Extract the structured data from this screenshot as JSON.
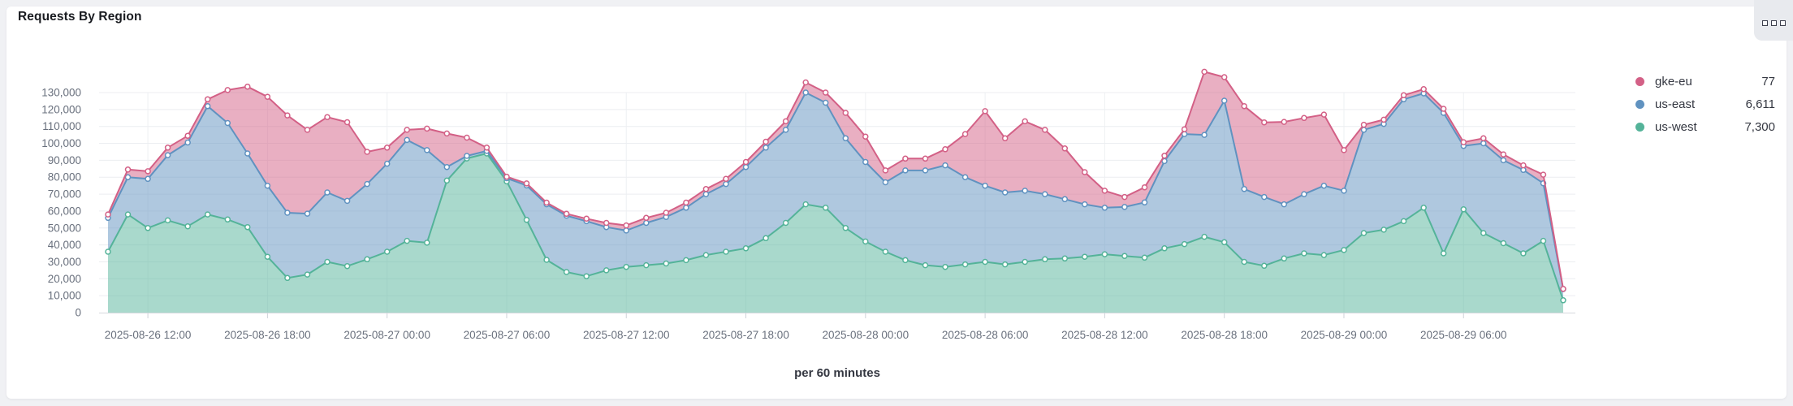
{
  "panel": {
    "title": "Requests By Region",
    "options_icon": "boxes-horizontal"
  },
  "legend": {
    "position": "right",
    "items": [
      {
        "label": "gke-eu",
        "value": "77",
        "color": "#d36086"
      },
      {
        "label": "us-east",
        "value": "6,611",
        "color": "#6092c0"
      },
      {
        "label": "us-west",
        "value": "7,300",
        "color": "#54b399"
      }
    ]
  },
  "chart_data": {
    "type": "area",
    "stacked": true,
    "title": "Requests By Region",
    "xlabel": "per 60 minutes",
    "ylabel": "",
    "ylim": [
      0,
      130000
    ],
    "y_tick_step": 10000,
    "grid": true,
    "legend_position": "right",
    "x_tick_labels": [
      "2025-08-26 12:00",
      "2025-08-26 18:00",
      "2025-08-27 00:00",
      "2025-08-27 06:00",
      "2025-08-27 12:00",
      "2025-08-27 18:00",
      "2025-08-28 00:00",
      "2025-08-28 06:00",
      "2025-08-28 12:00",
      "2025-08-28 18:00",
      "2025-08-29 00:00",
      "2025-08-29 06:00"
    ],
    "x_tick_point_indices": [
      2,
      8,
      14,
      20,
      26,
      32,
      38,
      44,
      50,
      56,
      62,
      68
    ],
    "series": [
      {
        "name": "us-west",
        "color": "#54b399",
        "values": [
          36000,
          58000,
          50000,
          54500,
          51000,
          58000,
          55000,
          50500,
          33000,
          20500,
          22500,
          30000,
          27500,
          31500,
          36000,
          42400,
          41300,
          78000,
          91100,
          94000,
          77500,
          54800,
          31200,
          24000,
          21500,
          25000,
          27000,
          28000,
          29000,
          31000,
          34000,
          36000,
          38000,
          44000,
          53000,
          64000,
          62000,
          50000,
          42000,
          36000,
          31000,
          28000,
          27000,
          28500,
          30000,
          28500,
          30000,
          31500,
          32000,
          33000,
          34500,
          33500,
          32500,
          38000,
          40500,
          44800,
          41600,
          30000,
          27700,
          32000,
          35000,
          34000,
          37000,
          47000,
          49000,
          54000,
          62000,
          35000,
          61000,
          47000,
          41000,
          35000,
          42400,
          7300
        ]
      },
      {
        "name": "us-east",
        "color": "#6092c0",
        "values": [
          20000,
          22000,
          29000,
          38500,
          49500,
          64000,
          57000,
          43500,
          42000,
          38500,
          36000,
          41000,
          38500,
          44500,
          52000,
          59600,
          54700,
          8000,
          1500,
          1500,
          1900,
          20300,
          32800,
          33300,
          32500,
          25500,
          21500,
          25000,
          27500,
          31000,
          36000,
          40000,
          48000,
          53500,
          55000,
          66000,
          62000,
          53000,
          47000,
          41000,
          53000,
          56000,
          60000,
          51500,
          45000,
          42500,
          42000,
          38500,
          35000,
          31000,
          27500,
          28900,
          32600,
          51500,
          65000,
          60200,
          83600,
          43000,
          40600,
          32000,
          35000,
          41000,
          35000,
          61000,
          62500,
          72000,
          67500,
          83000,
          37500,
          53000,
          49000,
          49300,
          34000,
          6611
        ]
      },
      {
        "name": "gke-eu",
        "color": "#d36086",
        "values": [
          2000,
          4500,
          4500,
          4500,
          4000,
          4000,
          19500,
          39500,
          52500,
          57500,
          49500,
          44500,
          46500,
          19000,
          9500,
          6000,
          12700,
          19800,
          10800,
          2000,
          900,
          1200,
          1000,
          1100,
          1500,
          2500,
          3000,
          3000,
          2500,
          3000,
          3000,
          3000,
          3000,
          3500,
          5000,
          6000,
          6000,
          15000,
          15000,
          7000,
          7000,
          7000,
          9500,
          25500,
          44000,
          32000,
          41000,
          38000,
          30000,
          19000,
          10000,
          5900,
          8900,
          3200,
          2800,
          37300,
          13900,
          49000,
          44100,
          48700,
          45000,
          42000,
          24000,
          3000,
          2500,
          2400,
          2500,
          2400,
          2200,
          3000,
          3500,
          2700,
          5100,
          77
        ]
      }
    ]
  }
}
